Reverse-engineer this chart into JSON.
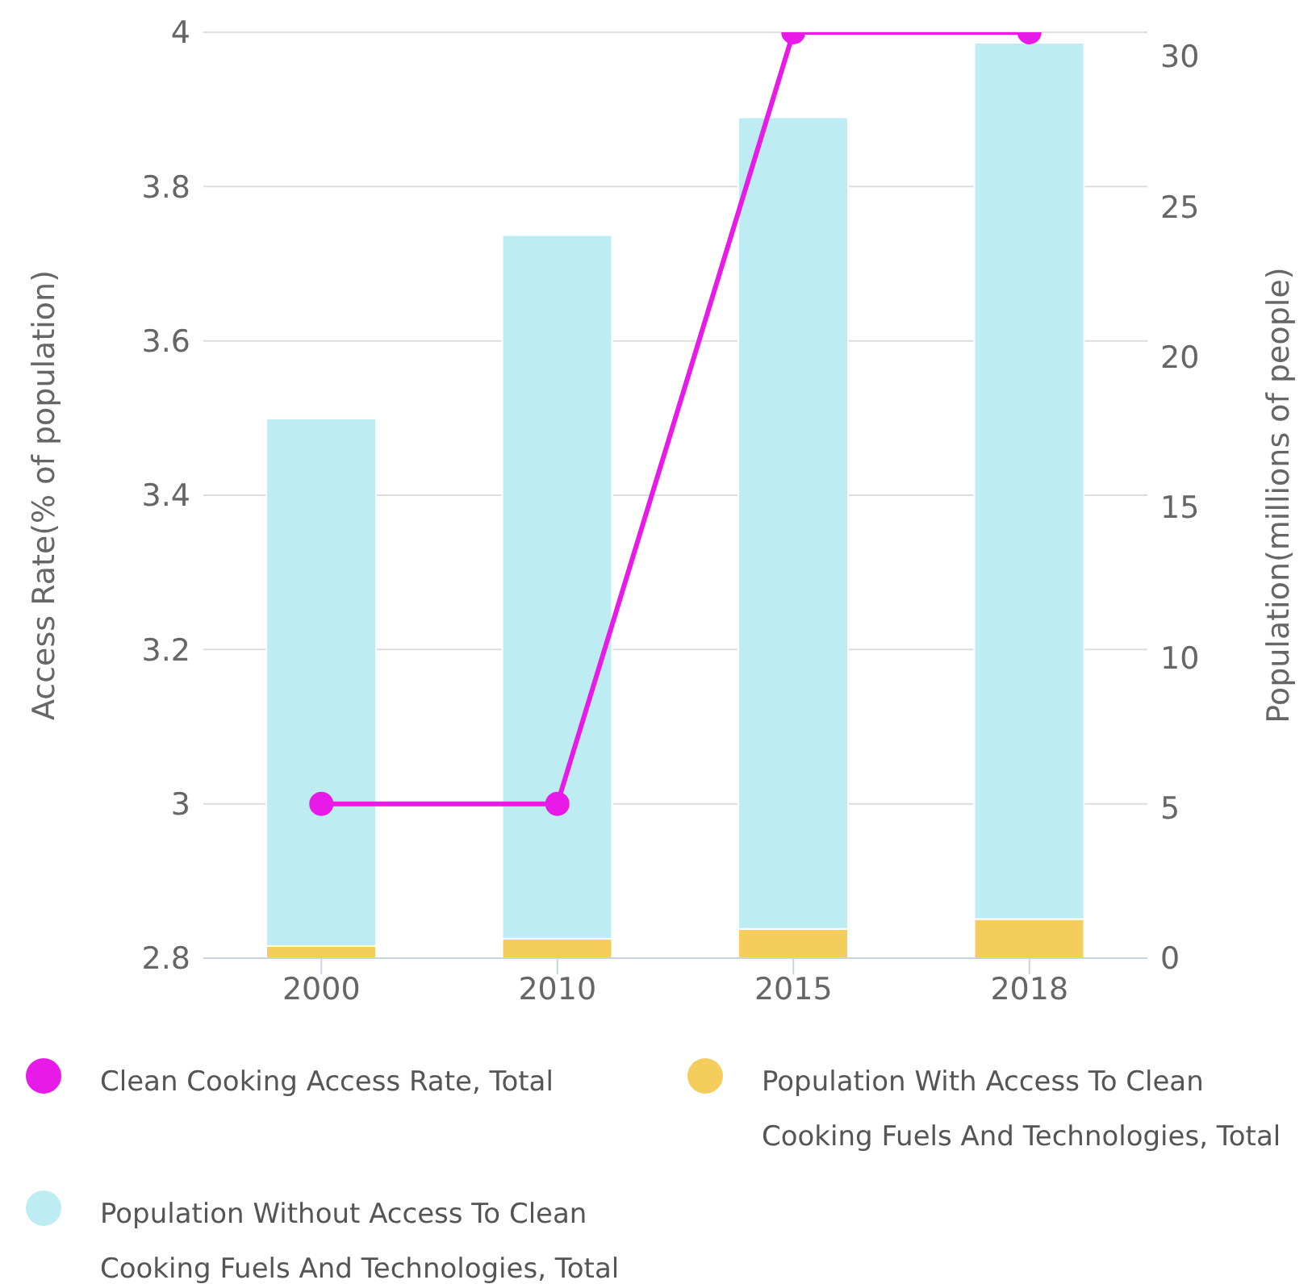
{
  "chart_data": {
    "type": "bar",
    "stacked": true,
    "categories": [
      "2000",
      "2010",
      "2015",
      "2018"
    ],
    "ylabel": "Access Rate(% of population)",
    "y2label": "Population(millions of people)",
    "ylim": [
      2.8,
      4
    ],
    "yticks": [
      2.8,
      3,
      3.2,
      3.4,
      3.6,
      3.8,
      4
    ],
    "y2lim": [
      0,
      30.8
    ],
    "y2ticks": [
      0,
      5,
      10,
      15,
      20,
      25,
      30
    ],
    "grid": "y",
    "legend": "bottom",
    "series": [
      {
        "name": "Population With Access To Clean Cooking Fuels And Technologies, Total",
        "color": "#f5cd5c",
        "axis": "y2",
        "values": [
          0.4,
          0.65,
          0.97,
          1.3
        ]
      },
      {
        "name": "Population Without Access To Clean Cooking Fuels And Technologies, Total",
        "color": "#bdedf3",
        "axis": "y2",
        "values": [
          17.55,
          23.4,
          27,
          29.15
        ]
      },
      {
        "name": "Clean Cooking Access Rate, Total",
        "type": "line",
        "color": "#e81ae8",
        "marker": "circle",
        "values": [
          3,
          3,
          4,
          4
        ]
      }
    ]
  }
}
